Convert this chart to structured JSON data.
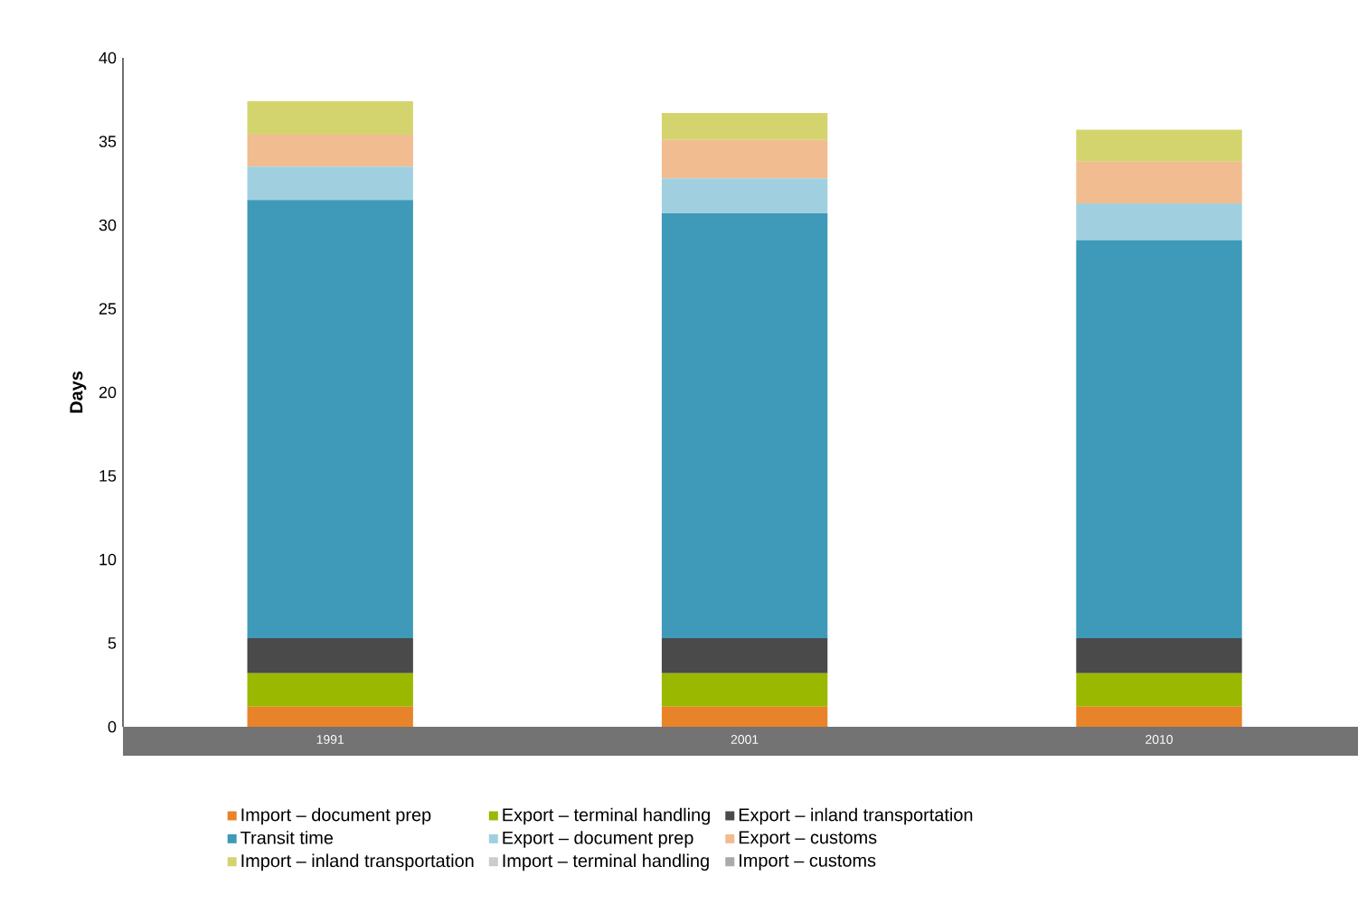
{
  "chart_data": {
    "type": "bar",
    "stacked": true,
    "ylabel": "Days",
    "categories": [
      "1991",
      "2001",
      "2010"
    ],
    "series": [
      {
        "name": "Import – document prep",
        "color": "#e8832a",
        "values": [
          1.2,
          1.2,
          1.2
        ]
      },
      {
        "name": "Export – terminal handling",
        "color": "#9ab800",
        "values": [
          2.0,
          2.0,
          2.0
        ]
      },
      {
        "name": "Export – inland transportation",
        "color": "#4a4a4a",
        "values": [
          2.1,
          2.1,
          2.1
        ]
      },
      {
        "name": "Transit time",
        "color": "#3e9ab8",
        "values": [
          26.2,
          25.4,
          23.8
        ]
      },
      {
        "name": "Export – document prep",
        "color": "#a0d0e0",
        "values": [
          2.0,
          2.1,
          2.2
        ]
      },
      {
        "name": "Export – customs",
        "color": "#f0bc90",
        "values": [
          1.9,
          2.3,
          2.5
        ]
      },
      {
        "name": "Import – inland transportation",
        "color": "#d4d46e",
        "values": [
          2.0,
          1.6,
          1.9
        ]
      },
      {
        "name": "Import – terminal handling",
        "color": "#cccccc",
        "values": [
          null,
          null,
          null
        ]
      },
      {
        "name": "Import – customs",
        "color": "#aaaaaa",
        "values": [
          null,
          null,
          null
        ]
      }
    ],
    "ylim": [
      0,
      40
    ],
    "yticks": [
      0,
      5,
      10,
      15,
      20,
      25,
      30,
      35,
      40
    ],
    "legend": "bottom",
    "grid": false
  }
}
